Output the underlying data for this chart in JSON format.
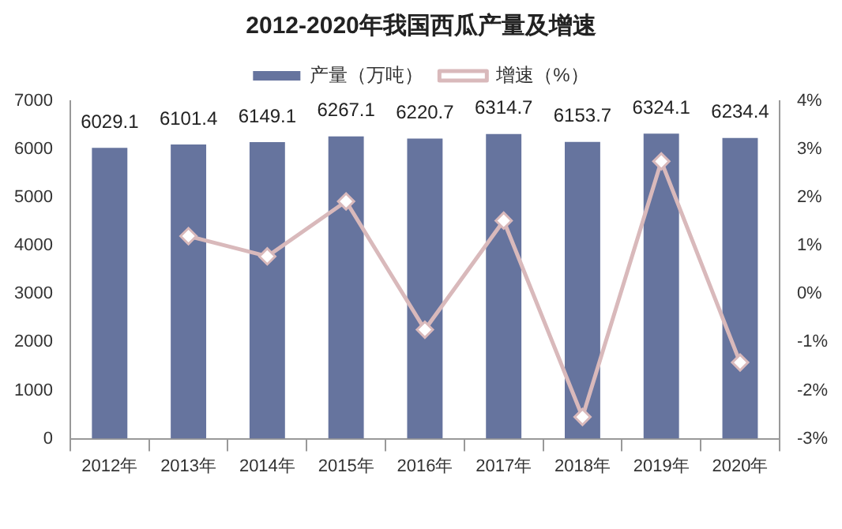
{
  "chart_data": {
    "type": "bar",
    "title": "2012-2020年我国西瓜产量及增速",
    "categories": [
      "2012年",
      "2013年",
      "2014年",
      "2015年",
      "2016年",
      "2017年",
      "2018年",
      "2019年",
      "2020年"
    ],
    "series": [
      {
        "name": "产量（万吨）",
        "color": "#66749e",
        "values": [
          6029.1,
          6101.4,
          6149.1,
          6267.1,
          6220.7,
          6314.7,
          6153.7,
          6324.1,
          6234.4
        ],
        "value_labels": [
          "6029.1",
          "6101.4",
          "6149.1",
          "6267.1",
          "6220.7",
          "6314.7",
          "6153.7",
          "6324.1",
          "6234.4"
        ]
      },
      {
        "name": "增速（%）",
        "type": "line",
        "axis": "y2",
        "color": "#d9b9bb",
        "values": [
          null,
          1.2,
          0.78,
          1.92,
          -0.74,
          1.52,
          -2.55,
          2.75,
          -1.42
        ]
      }
    ],
    "ylim": [
      0,
      7000
    ],
    "yticks": [
      0,
      1000,
      2000,
      3000,
      4000,
      5000,
      6000,
      7000
    ],
    "y2lim": [
      -3,
      4
    ],
    "y2ticks": [
      {
        "value": -3,
        "label": "-3%"
      },
      {
        "value": -2,
        "label": "-2%"
      },
      {
        "value": -1,
        "label": "-1%"
      },
      {
        "value": 0,
        "label": "0%"
      },
      {
        "value": 1,
        "label": "1%"
      },
      {
        "value": 2,
        "label": "2%"
      },
      {
        "value": 3,
        "label": "3%"
      },
      {
        "value": 4,
        "label": "4%"
      }
    ],
    "grid": false,
    "legend": "top",
    "marker": "diamond"
  }
}
